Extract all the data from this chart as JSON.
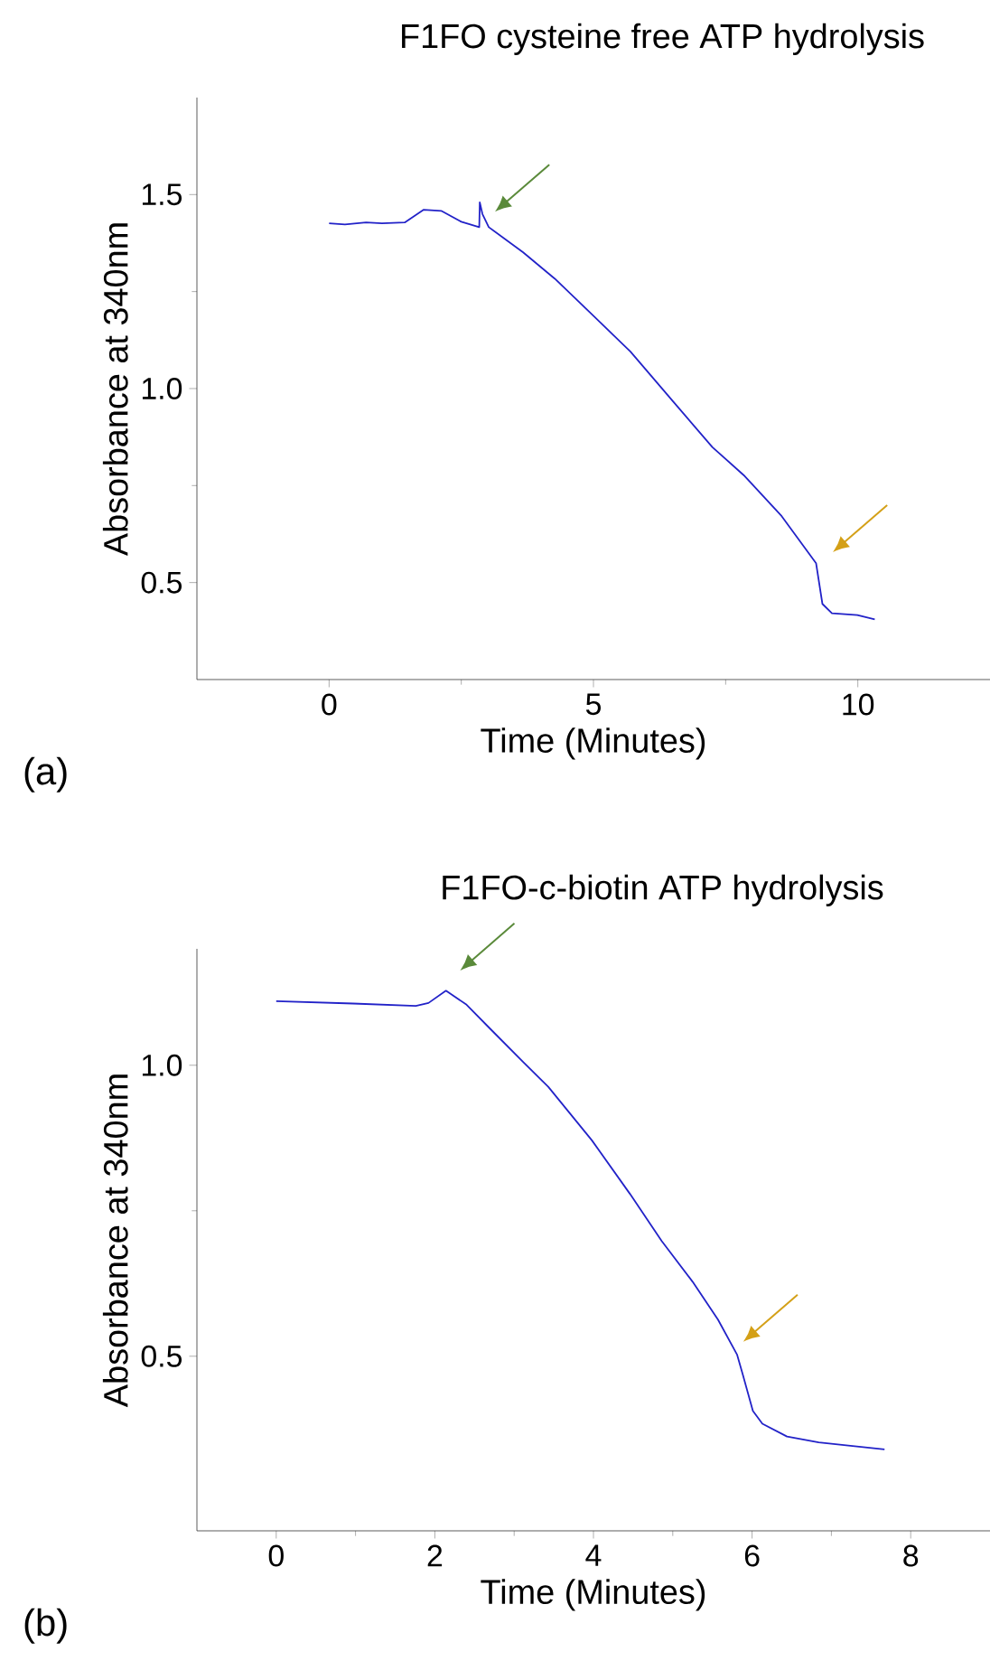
{
  "chart_data": [
    {
      "type": "line",
      "title": "F1FO cysteine free ATP hydrolysis",
      "xlabel": "Time (Minutes)",
      "ylabel": "Absorbance at 340nm",
      "xlim": [
        -2.5,
        12.5
      ],
      "ylim": [
        0.25,
        1.75
      ],
      "xticks": [
        0,
        5,
        10
      ],
      "yticks": [
        {
          "value": 0.5,
          "label": "0.5"
        },
        {
          "value": 1.0,
          "label": "1.0"
        },
        {
          "value": 1.5,
          "label": "1.5"
        }
      ],
      "annotations": [
        "(a)"
      ],
      "x": [
        0,
        0.3,
        0.7,
        1.0,
        1.43,
        1.79,
        2.12,
        2.5,
        2.84,
        2.85,
        2.9,
        3.02,
        3.67,
        4.27,
        4.98,
        5.7,
        6.53,
        7.25,
        7.84,
        8.56,
        9.21,
        9.33,
        9.51,
        9.99,
        10.32
      ],
      "series": [
        {
          "color": "#2222c8",
          "values": [
            1.426,
            1.423,
            1.428,
            1.426,
            1.428,
            1.461,
            1.458,
            1.43,
            1.416,
            1.48,
            1.45,
            1.416,
            1.351,
            1.283,
            1.19,
            1.095,
            0.963,
            0.849,
            0.777,
            0.671,
            0.55,
            0.445,
            0.421,
            0.416,
            0.405
          ]
        }
      ]
    },
    {
      "type": "line",
      "title": "F1FO-c-biotin ATP hydrolysis",
      "xlabel": "Time (Minutes)",
      "ylabel": "Absorbance at 340nm",
      "xlim": [
        -1,
        9
      ],
      "ylim": [
        0.2,
        1.2
      ],
      "xticks": [
        0,
        2,
        4,
        6,
        8
      ],
      "yticks": [
        {
          "value": 0.5,
          "label": "0.5"
        },
        {
          "value": 1.0,
          "label": "1.0"
        }
      ],
      "annotations": [
        "(b)"
      ],
      "x": [
        0,
        0.97,
        1.76,
        1.92,
        2.14,
        2.4,
        2.71,
        3.11,
        3.43,
        3.98,
        4.46,
        4.86,
        5.25,
        5.57,
        5.81,
        5.89,
        6.01,
        6.13,
        6.44,
        6.84,
        7.24,
        7.67
      ],
      "series": [
        {
          "color": "#2222c8",
          "values": [
            1.11,
            1.106,
            1.102,
            1.107,
            1.128,
            1.104,
            1.061,
            1.006,
            0.963,
            0.871,
            0.779,
            0.698,
            0.628,
            0.563,
            0.503,
            0.465,
            0.406,
            0.384,
            0.362,
            0.352,
            0.346,
            0.34
          ]
        }
      ]
    }
  ]
}
